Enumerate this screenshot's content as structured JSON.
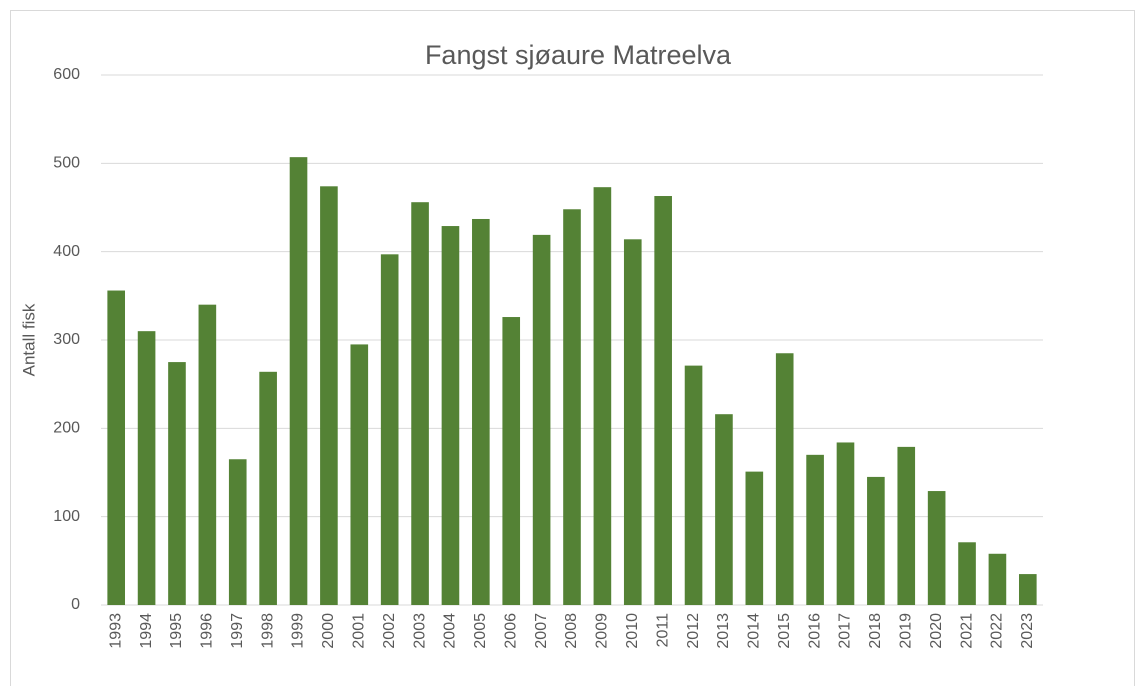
{
  "chart_data": {
    "type": "bar",
    "title": "Fangst sjøaure Matreelva",
    "y_label": "Antall fisk",
    "categories": [
      "1993",
      "1994",
      "1995",
      "1996",
      "1997",
      "1998",
      "1999",
      "2000",
      "2001",
      "2002",
      "2003",
      "2004",
      "2005",
      "2006",
      "2007",
      "2008",
      "2009",
      "2010",
      "2011",
      "2012",
      "2013",
      "2014",
      "2015",
      "2016",
      "2017",
      "2018",
      "2019",
      "2020",
      "2021",
      "2022",
      "2023"
    ],
    "values": [
      356,
      310,
      275,
      340,
      165,
      264,
      507,
      474,
      295,
      397,
      456,
      429,
      437,
      326,
      419,
      448,
      473,
      414,
      463,
      271,
      216,
      151,
      285,
      170,
      184,
      145,
      179,
      129,
      71,
      58,
      35
    ],
    "color": "#548235",
    "ylim": [
      0,
      600
    ],
    "yticks": [
      0,
      100,
      200,
      300,
      400,
      500,
      600
    ],
    "grid": true
  }
}
